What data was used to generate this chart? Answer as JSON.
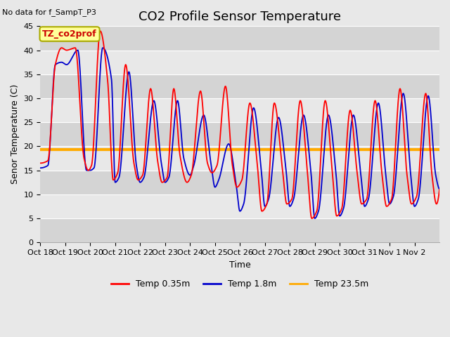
{
  "title": "CO2 Profile Sensor Temperature",
  "no_data_text": "No data for f_SampT_P3",
  "ylabel": "Senor Temperature (C)",
  "xlabel": "Time",
  "ylim": [
    0,
    45
  ],
  "yticks": [
    0,
    5,
    10,
    15,
    20,
    25,
    30,
    35,
    40,
    45
  ],
  "xtick_labels": [
    "Oct 18",
    "Oct 19",
    "Oct 20",
    "Oct 21",
    "Oct 22",
    "Oct 23",
    "Oct 24",
    "Oct 25",
    "Oct 26",
    "Oct 27",
    "Oct 28",
    "Oct 29",
    "Oct 30",
    "Oct 31",
    "Nov 1",
    "Nov 2"
  ],
  "legend_box_label": "TZ_co2prof",
  "legend_entries": [
    "Temp 0.35m",
    "Temp 1.8m",
    "Temp 23.5m"
  ],
  "line_colors": [
    "#ff0000",
    "#0000cc",
    "#ffaa00"
  ],
  "constant_line_value": 19.3,
  "bg_color": "#e8e8e8",
  "band_colors": [
    "#d4d4d4",
    "#e8e8e8"
  ],
  "title_fontsize": 13,
  "label_fontsize": 9,
  "tick_fontsize": 8,
  "red_ctrl_x": [
    0.0,
    0.3,
    0.6,
    0.85,
    1.05,
    1.4,
    1.75,
    1.92,
    2.05,
    2.4,
    2.7,
    2.92,
    3.1,
    3.42,
    3.75,
    3.92,
    4.1,
    4.42,
    4.7,
    4.88,
    5.08,
    5.35,
    5.6,
    5.88,
    6.05,
    6.42,
    6.7,
    6.88,
    7.08,
    7.42,
    7.7,
    7.88,
    8.08,
    8.4,
    8.7,
    8.88,
    9.08,
    9.38,
    9.7,
    9.88,
    10.08,
    10.42,
    10.7,
    10.88,
    11.08,
    11.42,
    11.7,
    11.88,
    12.08,
    12.42,
    12.7,
    12.88,
    13.08,
    13.42,
    13.7,
    13.88,
    14.08,
    14.42,
    14.7,
    14.88,
    15.08,
    15.45,
    15.7,
    15.88,
    16.0
  ],
  "red_ctrl_y": [
    16.5,
    17.0,
    37.0,
    40.5,
    40.0,
    40.5,
    17.5,
    15.0,
    16.0,
    44.0,
    33.5,
    13.0,
    14.5,
    37.0,
    16.5,
    13.0,
    14.0,
    32.0,
    17.0,
    12.5,
    13.5,
    32.0,
    18.0,
    12.5,
    14.0,
    31.5,
    16.5,
    14.5,
    16.0,
    32.5,
    16.0,
    11.5,
    13.0,
    29.0,
    16.0,
    6.5,
    8.0,
    29.0,
    15.5,
    8.0,
    9.0,
    29.5,
    15.0,
    5.0,
    6.5,
    29.5,
    15.0,
    5.5,
    7.0,
    27.5,
    14.5,
    8.0,
    9.0,
    29.5,
    14.0,
    7.5,
    9.0,
    32.0,
    14.0,
    8.0,
    9.5,
    31.0,
    14.0,
    8.0,
    11.0
  ],
  "blue_ctrl_x": [
    0.0,
    0.3,
    0.6,
    0.85,
    1.05,
    1.5,
    1.85,
    2.0,
    2.15,
    2.5,
    2.85,
    3.0,
    3.15,
    3.55,
    3.85,
    4.0,
    4.15,
    4.55,
    4.85,
    5.0,
    5.15,
    5.5,
    5.75,
    6.0,
    6.15,
    6.55,
    6.85,
    7.0,
    7.15,
    7.55,
    7.85,
    8.0,
    8.15,
    8.55,
    8.85,
    9.0,
    9.15,
    9.55,
    9.85,
    10.0,
    10.15,
    10.55,
    10.85,
    11.0,
    11.15,
    11.55,
    11.85,
    12.0,
    12.15,
    12.55,
    12.85,
    13.0,
    13.15,
    13.55,
    13.85,
    14.0,
    14.15,
    14.55,
    14.85,
    15.0,
    15.15,
    15.55,
    15.85,
    16.0
  ],
  "blue_ctrl_y": [
    15.5,
    16.0,
    37.0,
    37.5,
    37.0,
    40.0,
    15.0,
    15.0,
    15.5,
    40.5,
    34.0,
    12.5,
    13.5,
    35.5,
    16.0,
    12.5,
    13.5,
    29.5,
    16.5,
    12.5,
    13.5,
    29.5,
    17.5,
    14.0,
    16.0,
    26.5,
    16.0,
    11.5,
    13.0,
    20.5,
    12.0,
    6.5,
    8.0,
    28.0,
    15.5,
    7.5,
    9.0,
    26.0,
    15.0,
    7.5,
    9.0,
    26.5,
    14.5,
    5.0,
    6.5,
    26.5,
    14.5,
    5.5,
    7.0,
    26.5,
    14.0,
    7.5,
    9.0,
    29.0,
    14.0,
    8.0,
    9.5,
    31.0,
    14.0,
    7.5,
    9.0,
    30.5,
    14.0,
    11.0
  ]
}
